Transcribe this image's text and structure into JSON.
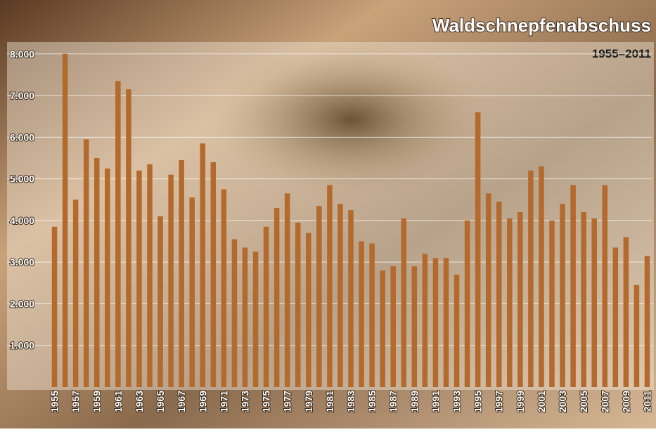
{
  "chart_data": {
    "type": "bar",
    "title": "Waldschnepfenabschuss",
    "subtitle": "1955–2011",
    "categories": [
      "1955",
      null,
      "1957",
      null,
      "1959",
      null,
      "1961",
      null,
      "1963",
      null,
      "1965",
      null,
      "1967",
      null,
      "1969",
      null,
      "1971",
      null,
      "1973",
      null,
      "1975",
      null,
      "1977",
      null,
      "1979",
      null,
      "1981",
      null,
      "1983",
      null,
      "1985",
      null,
      "1987",
      null,
      "1989",
      null,
      "1991",
      null,
      "1993",
      null,
      "1995",
      null,
      "1997",
      null,
      "1999",
      null,
      "2001",
      null,
      "2003",
      null,
      "2005",
      null,
      "2007",
      null,
      "2009",
      null,
      "2011"
    ],
    "values": [
      3850,
      8000,
      4500,
      5950,
      5500,
      5250,
      7350,
      7150,
      5200,
      5350,
      4100,
      5100,
      5450,
      4550,
      5850,
      5400,
      4750,
      3550,
      3350,
      3250,
      3850,
      4300,
      4650,
      3950,
      3700,
      4350,
      4850,
      4400,
      4250,
      3500,
      3450,
      2800,
      2900,
      4050,
      2900,
      3200,
      3100,
      3100,
      2700,
      4000,
      6600,
      4650,
      4450,
      4050,
      4200,
      5200,
      5300,
      4000,
      4400,
      4850,
      4200,
      4050,
      4850,
      3350,
      3600,
      2450,
      3150
    ],
    "color": "#b36a2c",
    "ylim": [
      0,
      8300
    ],
    "yticks": [
      {
        "value": 1000,
        "label": "1.000"
      },
      {
        "value": 2000,
        "label": "2.000"
      },
      {
        "value": 3000,
        "label": "3.000"
      },
      {
        "value": 4000,
        "label": "4.000"
      },
      {
        "value": 5000,
        "label": "5.000"
      },
      {
        "value": 6000,
        "label": "6.000"
      },
      {
        "value": 7000,
        "label": "7.000"
      },
      {
        "value": 8000,
        "label": "8.000"
      }
    ],
    "grid": true
  }
}
